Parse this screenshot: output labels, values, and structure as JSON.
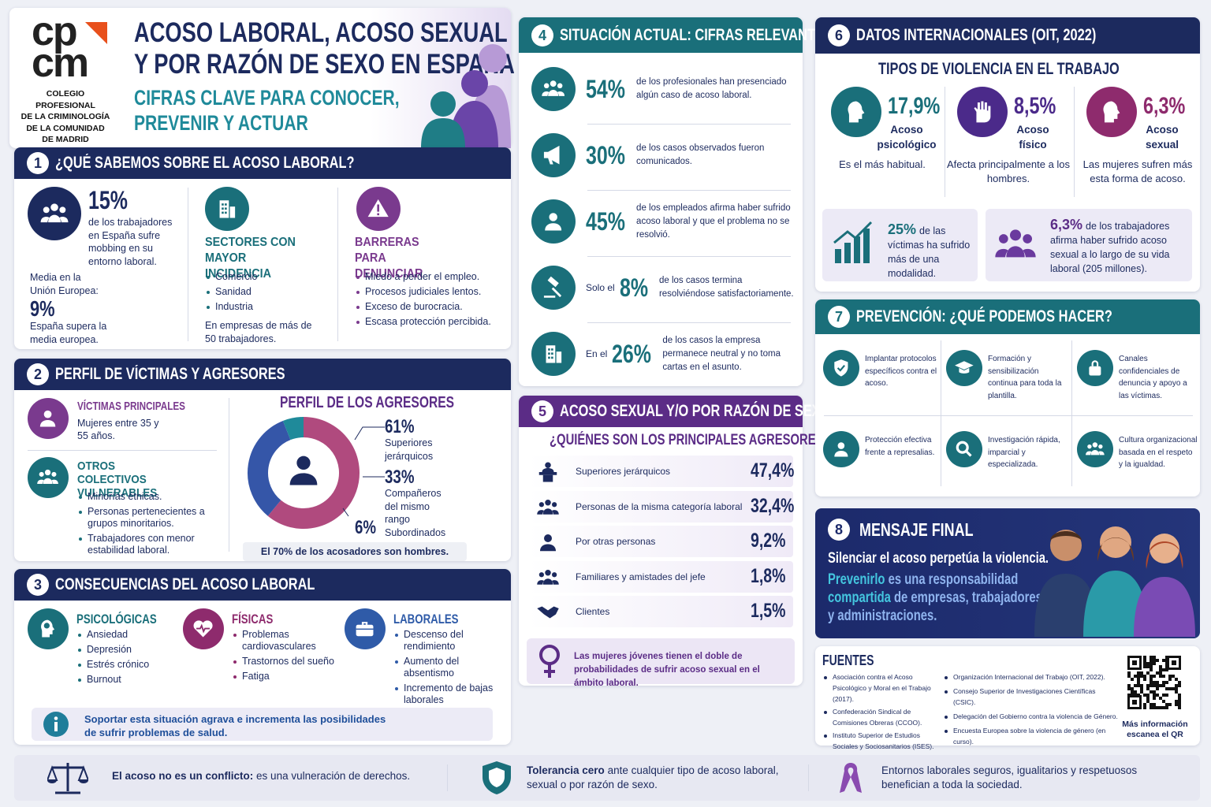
{
  "header": {
    "logo_top": "cp",
    "logo_bottom": "cm",
    "org_lines": [
      "COLEGIO PROFESIONAL",
      "DE LA CRIMINOLOGÍA",
      "DE LA COMUNIDAD",
      "DE MADRID"
    ],
    "title_lines": [
      "ACOSO LABORAL, ACOSO SEXUAL",
      "Y POR RAZÓN DE SEXO EN ESPAÑA"
    ],
    "subtitle_lines": [
      "CIFRAS CLAVE PARA CONOCER,",
      "PREVENIR Y ACTUAR"
    ]
  },
  "s1": {
    "number": "1",
    "title": "¿QUÉ SABEMOS SOBRE EL ACOSO LABORAL?",
    "stat": "15%",
    "stat_text": "de los trabajadores en España sufre mobbing en su entorno laboral.",
    "eu_label": "Media en la Unión Europea:",
    "eu_value": "9%",
    "eu_note": "España supera la media europea.",
    "sectors_title": "SECTORES CON MAYOR INCIDENCIA",
    "sectors": [
      "Comercio",
      "Sanidad",
      "Industria"
    ],
    "sectors_note": "En empresas de más de 50 trabajadores.",
    "barriers_title": "BARRERAS PARA DENUNCIAR",
    "barriers": [
      "Miedo a perder el empleo.",
      "Procesos judiciales lentos.",
      "Exceso de burocracia.",
      "Escasa protección percibida."
    ]
  },
  "s2": {
    "number": "2",
    "title": "PERFIL DE VÍCTIMAS Y AGRESORES",
    "victims_title": "VÍCTIMAS PRINCIPALES",
    "victims_text": "Mujeres entre 35 y 55 años.",
    "others_title": "OTROS COLECTIVOS VULNERABLES",
    "others": [
      "Minorías étnicas.",
      "Personas pertenecientes a grupos minoritarios.",
      "Trabajadores con menor estabilidad laboral."
    ],
    "aggressors": {
      "type": "pie",
      "title": "PERFIL DE LOS AGRESORES",
      "categories": [
        "Superiores jerárquicos",
        "Compañeros del mismo rango",
        "Subordinados"
      ],
      "values": [
        61,
        33,
        6
      ],
      "value_labels": [
        "61%",
        "33%",
        "6%"
      ],
      "colors": [
        "#b04a7e",
        "#3556a8",
        "#1f8a9a"
      ]
    },
    "note": "El 70% de los acosadores son hombres."
  },
  "s3": {
    "number": "3",
    "title": "CONSECUENCIAS DEL ACOSO LABORAL",
    "groups": [
      {
        "title": "PSICOLÓGICAS",
        "items": [
          "Ansiedad",
          "Depresión",
          "Estrés crónico",
          "Burnout"
        ]
      },
      {
        "title": "FÍSICAS",
        "items": [
          "Problemas cardiovasculares",
          "Trastornos del sueño",
          "Fatiga"
        ]
      },
      {
        "title": "LABORALES",
        "items": [
          "Descenso del rendimiento",
          "Aumento del absentismo",
          "Incremento de bajas laborales"
        ]
      }
    ],
    "note": "Soportar esta situación agrava e incrementa las posibilidades de sufrir problemas de salud."
  },
  "s4": {
    "number": "4",
    "title": "SITUACIÓN ACTUAL: CIFRAS RELEVANTES",
    "rows": [
      {
        "stat": "54%",
        "text": "de los profesionales han presenciado algún caso de acoso laboral."
      },
      {
        "stat": "30%",
        "text": "de los casos observados fueron comunicados."
      },
      {
        "stat": "45%",
        "text": "de los empleados afirma haber sufrido acoso laboral y que el problema no se resolvió."
      },
      {
        "prefix": "Solo el",
        "stat": "8%",
        "text": "de los casos termina resolviéndose satisfactoriamente."
      },
      {
        "prefix": "En el",
        "stat": "26%",
        "text": "de los casos la empresa permanece neutral y no toma cartas en el asunto."
      }
    ]
  },
  "s5": {
    "number": "5",
    "title": "ACOSO SEXUAL Y/O POR RAZÓN DE SEXO",
    "subtitle": "¿QUIÉNES SON LOS PRINCIPALES AGRESORES?",
    "rows": [
      {
        "label": "Superiores jerárquicos",
        "value": "47,4%"
      },
      {
        "label": "Personas de la misma categoría laboral",
        "value": "32,4%"
      },
      {
        "label": "Por otras personas",
        "value": "9,2%"
      },
      {
        "label": "Familiares y amistades del jefe",
        "value": "1,8%"
      },
      {
        "label": "Clientes",
        "value": "1,5%"
      }
    ],
    "note": "Las mujeres jóvenes tienen el doble de probabilidades de sufrir acoso sexual en el ámbito laboral."
  },
  "s6": {
    "number": "6",
    "title": "DATOS INTERNACIONALES (OIT, 2022)",
    "subtitle": "TIPOS DE VIOLENCIA EN EL TRABAJO",
    "types": [
      {
        "stat": "17,9%",
        "label": "Acoso psicológico",
        "note": "Es el más habitual."
      },
      {
        "stat": "8,5%",
        "label": "Acoso físico",
        "note": "Afecta principalmente a los hombres."
      },
      {
        "stat": "6,3%",
        "label": "Acoso sexual",
        "note": "Las mujeres sufren más esta forma de acoso."
      }
    ],
    "facts": [
      {
        "stat": "25%",
        "text": "de las víctimas ha sufrido más de una modalidad."
      },
      {
        "stat": "6,3%",
        "text": "de los trabajadores afirma haber sufrido acoso sexual a lo largo de su vida laboral (205 millones)."
      }
    ]
  },
  "s7": {
    "number": "7",
    "title": "PREVENCIÓN: ¿QUÉ PODEMOS HACER?",
    "items": [
      "Implantar protocolos específicos contra el acoso.",
      "Formación y sensibilización continua para toda la plantilla.",
      "Canales confidenciales de denuncia y apoyo a las víctimas.",
      "Protección efectiva frente a represalias.",
      "Investigación rápida, imparcial y especializada.",
      "Cultura organizacional basada en el respeto y la igualdad."
    ]
  },
  "s8": {
    "number": "8",
    "title": "MENSAJE FINAL",
    "line1": "Silenciar el acoso perpetúa la violencia.",
    "message_parts": [
      {
        "text": "Prevenirlo",
        "em": true
      },
      {
        "text": "es una responsabilidad",
        "em": false
      },
      {
        "text": "compartida",
        "em": true
      },
      {
        "text": "de empresas, trabajadores y administraciones.",
        "em": false
      }
    ]
  },
  "sources": {
    "title": "FUENTES",
    "items": [
      "Asociación contra el Acoso Psicológico y Moral en el Trabajo (2017).",
      "Confederación Sindical de Comisiones Obreras (CCOO).",
      "Instituto Superior de Estudios Sociales y Sociosanitarios (ISES).",
      "Organización Internacional del Trabajo (OIT, 2022).",
      "Consejo Superior de Investigaciones Científicas (CSIC).",
      "Delegación del Gobierno contra la violencia de Género.",
      "Encuesta Europea sobre la violencia de género (en curso)."
    ],
    "qr_text": "Más información escanea el QR"
  },
  "footer": [
    {
      "strong": "El acoso no es un conflicto:",
      "text": "es una vulneración de derechos."
    },
    {
      "strong": "Tolerancia cero",
      "text": "ante cualquier tipo de acoso laboral, sexual o por razón de sexo."
    },
    {
      "text": "Entornos laborales seguros, igualitarios y respetuosos benefician a toda la sociedad."
    }
  ]
}
